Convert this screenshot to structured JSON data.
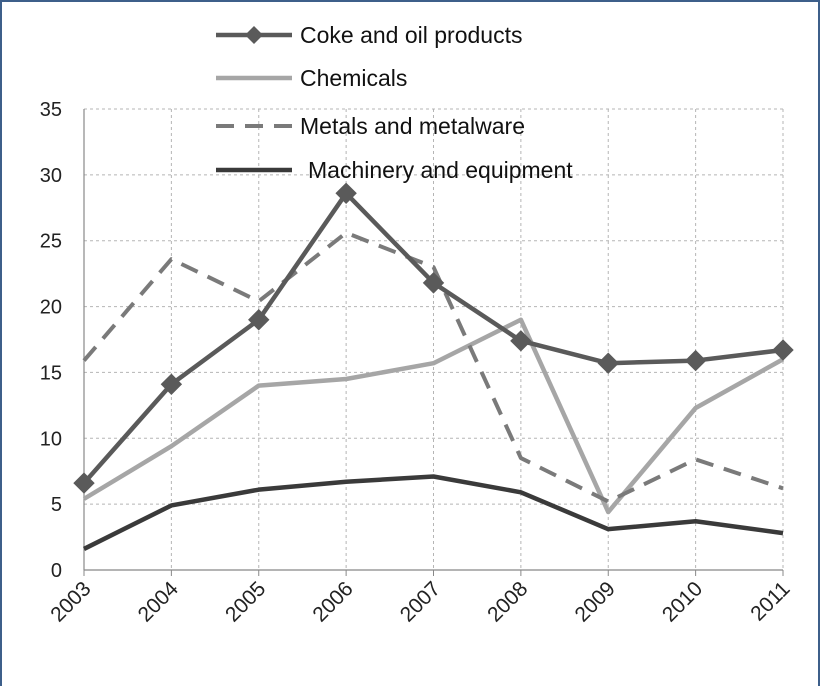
{
  "chart_data": {
    "type": "line",
    "x": [
      "2003",
      "2004",
      "2005",
      "2006",
      "2007",
      "2008",
      "2009",
      "2010",
      "2011"
    ],
    "ylim": [
      0,
      35
    ],
    "yticks": [
      "0",
      "5",
      "10",
      "15",
      "20",
      "25",
      "30",
      "35"
    ],
    "grid": true,
    "legend_position": "top",
    "series": [
      {
        "name": "Coke and oil products",
        "color": "#5a5a5a",
        "style": "solid-diamond",
        "values": [
          6.6,
          14.1,
          19.0,
          28.6,
          21.8,
          17.4,
          15.7,
          15.9,
          16.7
        ]
      },
      {
        "name": "Chemicals",
        "color": "#a6a6a6",
        "style": "solid",
        "values": [
          5.4,
          9.4,
          14.0,
          14.5,
          15.7,
          19.0,
          4.4,
          12.3,
          16.0
        ]
      },
      {
        "name": "Metals and metalware",
        "color": "#7a7a7a",
        "style": "dashed",
        "values": [
          15.9,
          23.6,
          20.4,
          25.6,
          23.0,
          8.5,
          5.2,
          8.4,
          6.2
        ]
      },
      {
        "name": "Machinery and equipment",
        "color": "#3a3a3a",
        "style": "solid",
        "values": [
          1.6,
          4.9,
          6.1,
          6.7,
          7.1,
          5.9,
          3.1,
          3.7,
          2.8
        ]
      }
    ],
    "title": "",
    "xlabel": "",
    "ylabel": ""
  }
}
